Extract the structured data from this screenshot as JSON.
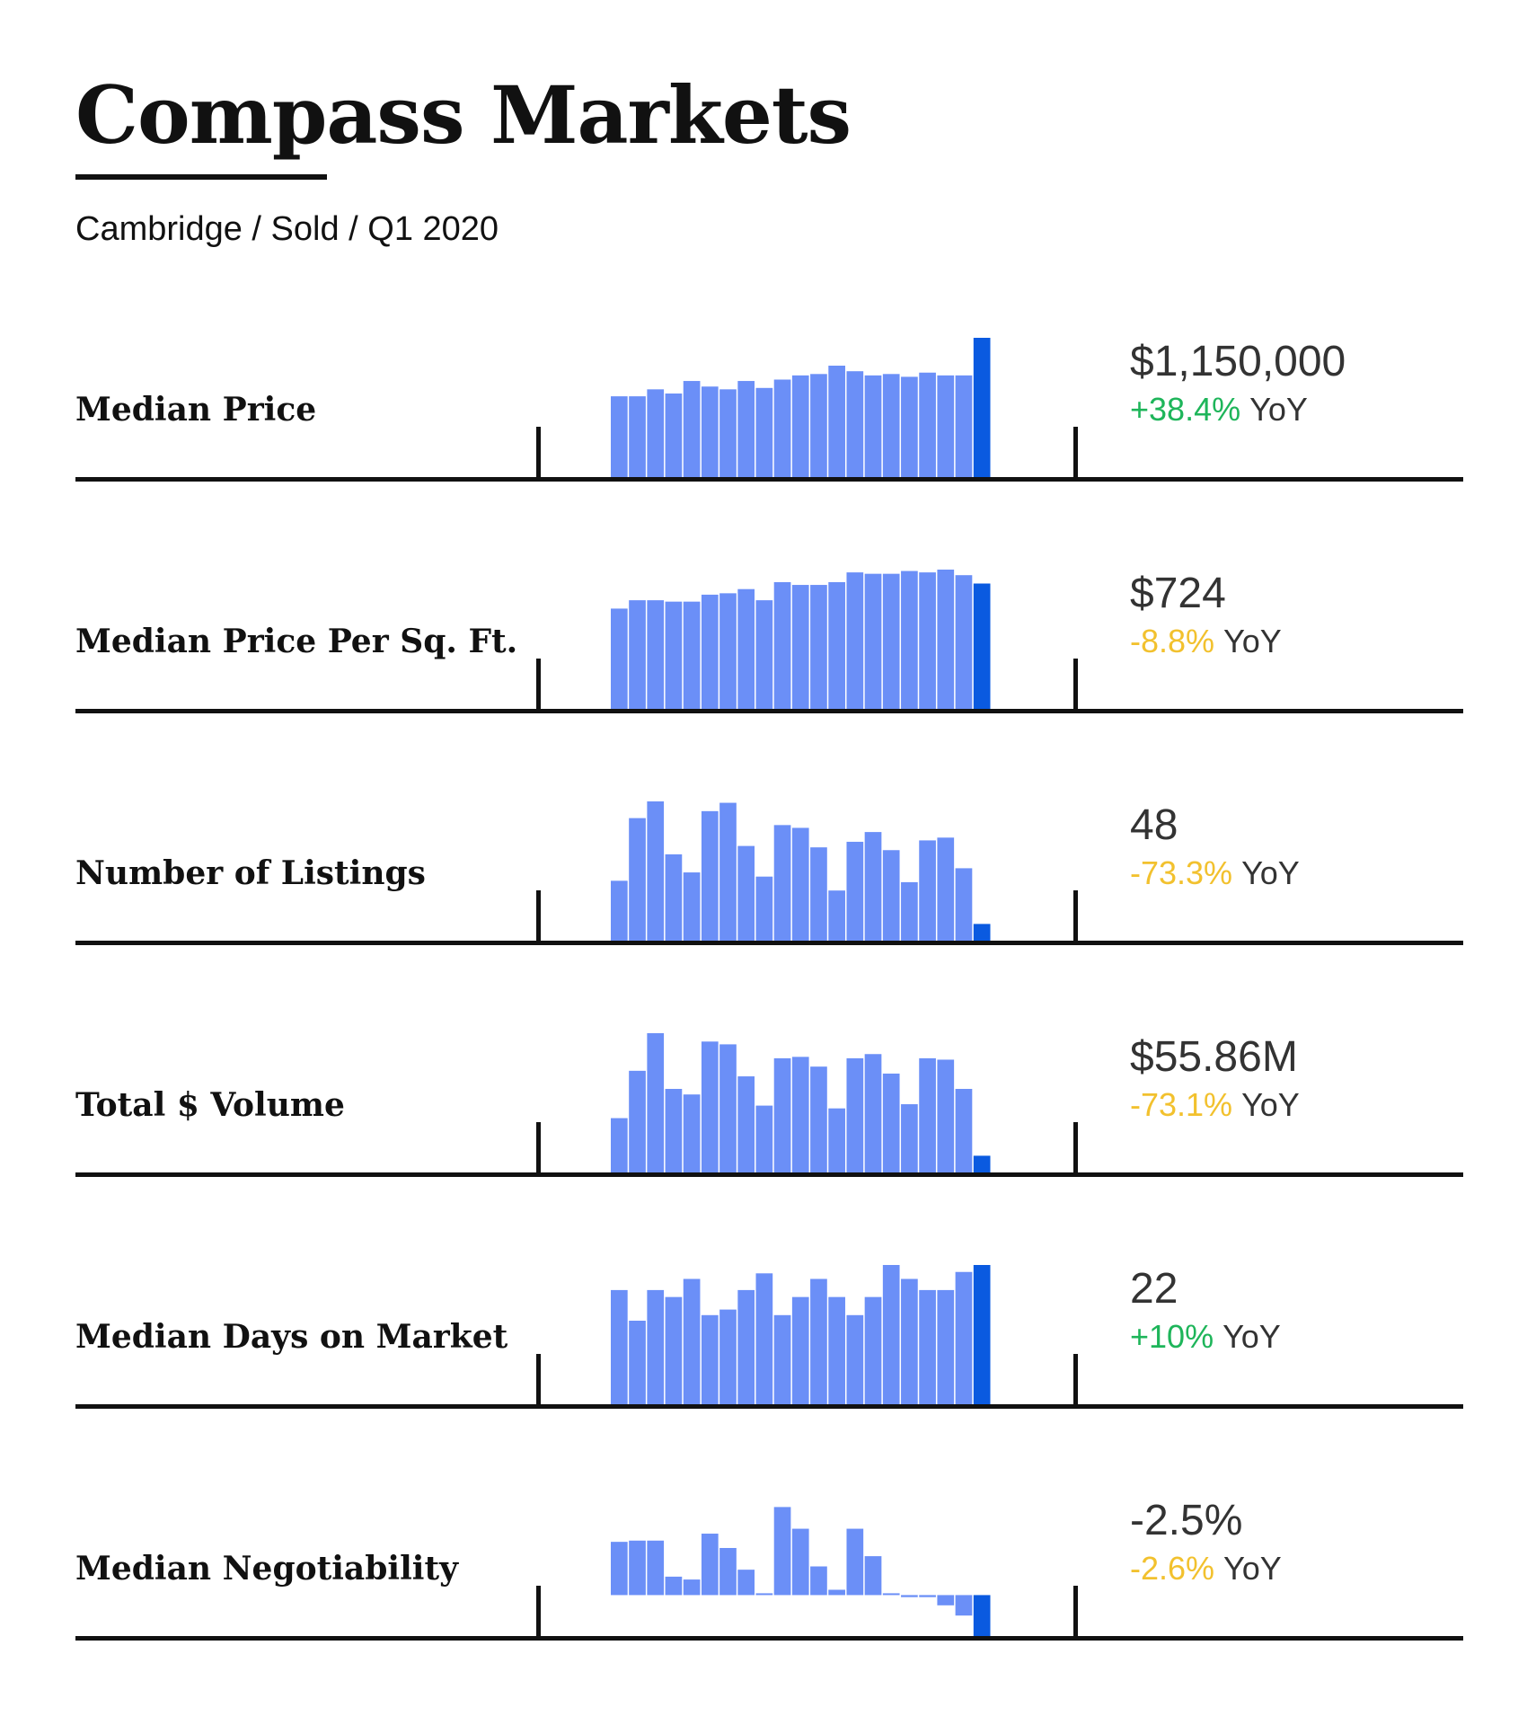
{
  "header": {
    "title": "Compass Markets",
    "subtitle": "Cambridge / Sold / Q1 2020"
  },
  "colors": {
    "bar": "#6b8ff7",
    "bar_highlight": "#0a5ae0",
    "positive": "#1eb55a",
    "neutral": "#f2c12e",
    "text": "#333333"
  },
  "yoy_suffix": "YoY",
  "chart_data": [
    {
      "type": "bar",
      "title": "Median Price",
      "value_label": "$1,150,000",
      "yoy": "+38.4%",
      "yoy_color": "positive",
      "ylim": [
        0,
        100
      ],
      "values": [
        58,
        58,
        63,
        60,
        69,
        65,
        63,
        69,
        64,
        70,
        73,
        74,
        80,
        76,
        73,
        74,
        72,
        75,
        73,
        73,
        100
      ],
      "highlight_index": 20
    },
    {
      "type": "bar",
      "title": "Median Price Per Sq. Ft.",
      "value_label": "$724",
      "yoy": "-8.8%",
      "yoy_color": "neutral",
      "ylim": [
        0,
        100
      ],
      "values": [
        72,
        78,
        78,
        77,
        77,
        82,
        83,
        86,
        78,
        91,
        89,
        89,
        91,
        98,
        97,
        97,
        99,
        98,
        100,
        96,
        90
      ],
      "highlight_index": 20
    },
    {
      "type": "bar",
      "title": "Number of Listings",
      "value_label": "48",
      "yoy": "-73.3%",
      "yoy_color": "neutral",
      "ylim": [
        0,
        100
      ],
      "values": [
        43,
        88,
        100,
        62,
        49,
        93,
        99,
        68,
        46,
        83,
        81,
        67,
        36,
        71,
        78,
        65,
        42,
        72,
        74,
        52,
        12
      ],
      "highlight_index": 20
    },
    {
      "type": "bar",
      "title": "Total $ Volume",
      "value_label": "$55.86M",
      "yoy": "-73.1%",
      "yoy_color": "neutral",
      "ylim": [
        0,
        100
      ],
      "values": [
        39,
        73,
        100,
        60,
        56,
        94,
        92,
        69,
        48,
        82,
        83,
        76,
        46,
        82,
        85,
        71,
        49,
        82,
        81,
        60,
        12
      ],
      "highlight_index": 20
    },
    {
      "type": "bar",
      "title": "Median Days on Market",
      "value_label": "22",
      "yoy": "+10%",
      "yoy_color": "positive",
      "ylim": [
        0,
        100
      ],
      "values": [
        82,
        60,
        82,
        77,
        90,
        64,
        68,
        82,
        94,
        64,
        77,
        90,
        77,
        64,
        77,
        100,
        90,
        82,
        82,
        95,
        100
      ],
      "highlight_index": 20
    },
    {
      "type": "bar",
      "title": "Median Negotiability",
      "value_label": "-2.5%",
      "yoy": "-2.6%",
      "yoy_color": "neutral",
      "ylim": [
        -1.0,
        2.4
      ],
      "zero_line": true,
      "values": [
        1.3,
        1.33,
        1.33,
        0.45,
        0.38,
        1.5,
        1.15,
        0.62,
        0.0,
        2.15,
        1.62,
        0.7,
        0.13,
        1.62,
        0.95,
        0.0,
        -0.05,
        -0.05,
        -0.25,
        -0.5,
        -1.0
      ],
      "highlight_index": 20
    }
  ]
}
